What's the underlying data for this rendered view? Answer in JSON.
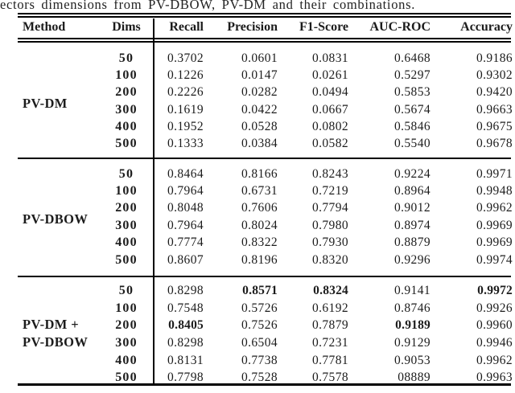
{
  "caption": {
    "text": "ectors dimensions from PV-DBOW, PV-DM and their combinations."
  },
  "table": {
    "headers": {
      "method": "Method",
      "dims": "Dims",
      "metrics": [
        "Recall",
        "Precision",
        "F1-Score",
        "AUC-ROC",
        "Accuracy"
      ]
    },
    "groups": [
      {
        "method_lines": [
          "PV-DM"
        ],
        "rows": [
          {
            "dims": "50",
            "values": [
              "0.3702",
              "0.0601",
              "0.0831",
              "0.6468",
              "0.9186"
            ],
            "bold": []
          },
          {
            "dims": "100",
            "values": [
              "0.1226",
              "0.0147",
              "0.0261",
              "0.5297",
              "0.9302"
            ],
            "bold": []
          },
          {
            "dims": "200",
            "values": [
              "0.2226",
              "0.0282",
              "0.0494",
              "0.5853",
              "0.9420"
            ],
            "bold": []
          },
          {
            "dims": "300",
            "values": [
              "0.1619",
              "0.0422",
              "0.0667",
              "0.5674",
              "0.9663"
            ],
            "bold": []
          },
          {
            "dims": "400",
            "values": [
              "0.1952",
              "0.0528",
              "0.0802",
              "0.5846",
              "0.9675"
            ],
            "bold": []
          },
          {
            "dims": "500",
            "values": [
              "0.1333",
              "0.0384",
              "0.0582",
              "0.5540",
              "0.9678"
            ],
            "bold": []
          }
        ]
      },
      {
        "method_lines": [
          "PV-DBOW"
        ],
        "rows": [
          {
            "dims": "50",
            "values": [
              "0.8464",
              "0.8166",
              "0.8243",
              "0.9224",
              "0.9971"
            ],
            "bold": []
          },
          {
            "dims": "100",
            "values": [
              "0.7964",
              "0.6731",
              "0.7219",
              "0.8964",
              "0.9948"
            ],
            "bold": []
          },
          {
            "dims": "200",
            "values": [
              "0.8048",
              "0.7606",
              "0.7794",
              "0.9012",
              "0.9962"
            ],
            "bold": []
          },
          {
            "dims": "300",
            "values": [
              "0.7964",
              "0.8024",
              "0.7980",
              "0.8974",
              "0.9969"
            ],
            "bold": []
          },
          {
            "dims": "400",
            "values": [
              "0.7774",
              "0.8322",
              "0.7930",
              "0.8879",
              "0.9969"
            ],
            "bold": []
          },
          {
            "dims": "500",
            "values": [
              "0.8607",
              "0.8196",
              "0.8320",
              "0.9296",
              "0.9974"
            ],
            "bold": []
          }
        ]
      },
      {
        "method_lines": [
          "PV-DM +",
          "PV-DBOW"
        ],
        "rows": [
          {
            "dims": "50",
            "values": [
              "0.8298",
              "0.8571",
              "0.8324",
              "0.9141",
              "0.9972"
            ],
            "bold": [
              1,
              2,
              4
            ]
          },
          {
            "dims": "100",
            "values": [
              "0.7548",
              "0.5726",
              "0.6192",
              "0.8746",
              "0.9926"
            ],
            "bold": []
          },
          {
            "dims": "200",
            "values": [
              "0.8405",
              "0.7526",
              "0.7879",
              "0.9189",
              "0.9960"
            ],
            "bold": [
              0,
              3
            ]
          },
          {
            "dims": "300",
            "values": [
              "0.8298",
              "0.6504",
              "0.7231",
              "0.9129",
              "0.9946"
            ],
            "bold": []
          },
          {
            "dims": "400",
            "values": [
              "0.8131",
              "0.7738",
              "0.7781",
              "0.9053",
              "0.9962"
            ],
            "bold": []
          },
          {
            "dims": "500",
            "values": [
              "0.7798",
              "0.7528",
              "0.7578",
              "08889",
              "0.9963"
            ],
            "bold": []
          }
        ]
      }
    ]
  }
}
